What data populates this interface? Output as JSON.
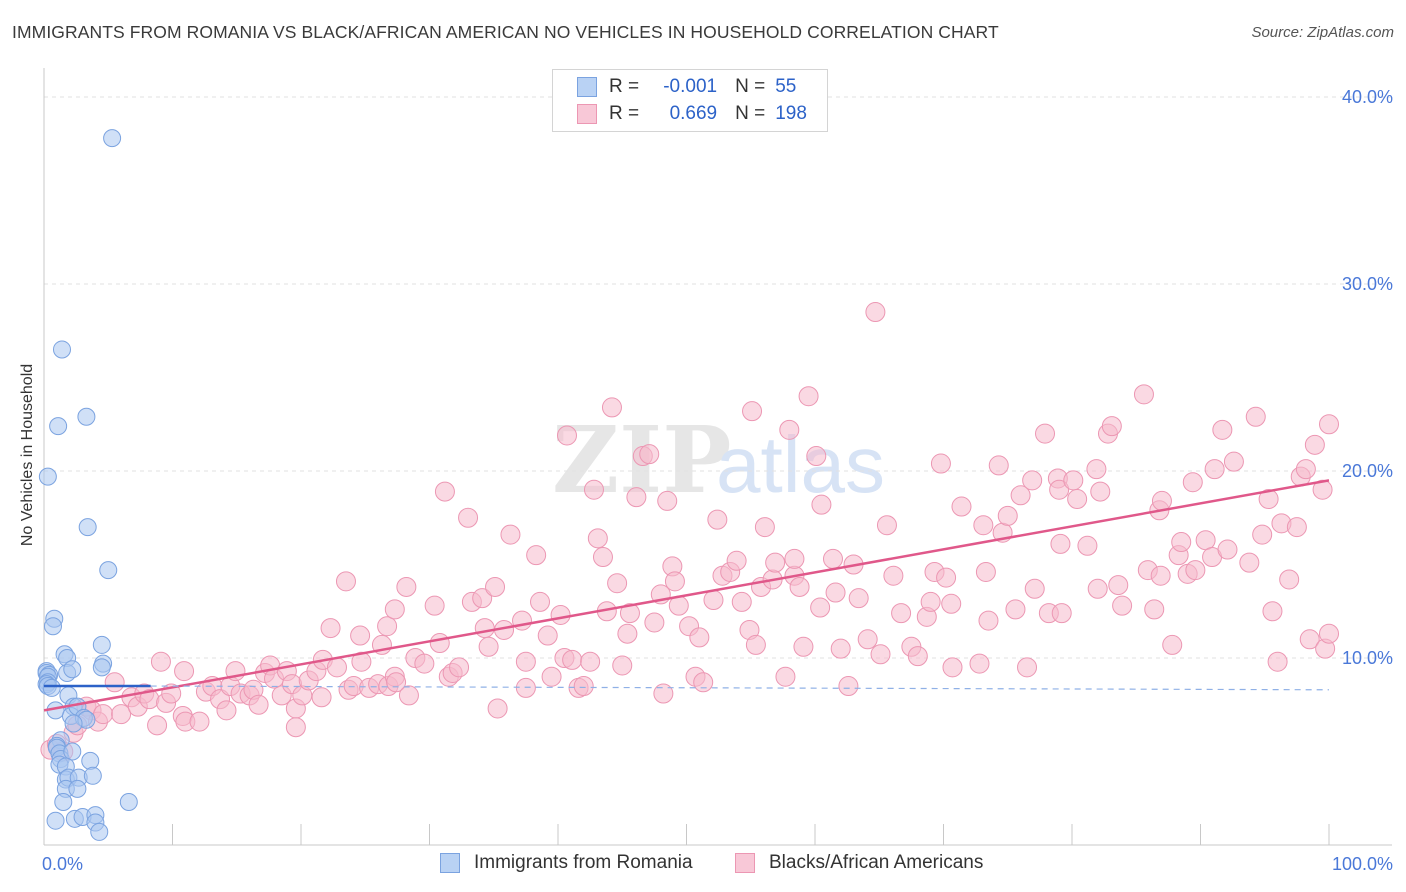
{
  "title": "IMMIGRANTS FROM ROMANIA VS BLACK/AFRICAN AMERICAN NO VEHICLES IN HOUSEHOLD CORRELATION CHART",
  "source": "Source: ZipAtlas.com",
  "watermark": {
    "zip": "ZIP",
    "atlas": "atlas"
  },
  "legend": {
    "rows": [
      {
        "r_label": "R =",
        "r_value": "-0.001",
        "n_label": "N =",
        "n_value": "55"
      },
      {
        "r_label": "R =",
        "r_value": "0.669",
        "n_label": "N =",
        "n_value": "198"
      }
    ]
  },
  "bottom_legend": [
    "Immigrants from Romania",
    "Blacks/African Americans"
  ],
  "chart_data": {
    "type": "scatter",
    "title": "IMMIGRANTS FROM ROMANIA VS BLACK/AFRICAN AMERICAN NO VEHICLES IN HOUSEHOLD CORRELATION CHART",
    "xlabel": "",
    "ylabel": "No Vehicles in Household",
    "xlim": [
      0,
      100
    ],
    "ylim": [
      0,
      40
    ],
    "x_tick_labels": [
      "0.0%",
      "100.0%"
    ],
    "y_ticks": [
      10,
      20,
      30,
      40
    ],
    "y_tick_labels": [
      "10.0%",
      "20.0%",
      "30.0%",
      "40.0%"
    ],
    "grid": true,
    "legend_position": "top-center",
    "colors": {
      "blue_fill": "#a9c6f0",
      "blue_stroke": "#7ba3e0",
      "blue_line": "#2c62c8",
      "pink_fill": "#f5b9cc",
      "pink_stroke": "#ec97b3",
      "pink_line": "#e0588a",
      "tick_text": "#4a78d8"
    },
    "series": [
      {
        "name": "Immigrants from Romania",
        "color": "#a9c6f0",
        "r": -0.001,
        "n": 55,
        "trend": {
          "x0": 0,
          "y0": 8.5,
          "x1": 8.3,
          "y1": 8.5,
          "dashed_to_x": 100,
          "dashed_y": 8.3
        },
        "points": [
          [
            5.3,
            37.8
          ],
          [
            1.4,
            26.5
          ],
          [
            1.1,
            22.4
          ],
          [
            3.3,
            22.9
          ],
          [
            0.3,
            19.7
          ],
          [
            3.4,
            17.0
          ],
          [
            5.0,
            14.7
          ],
          [
            0.8,
            12.1
          ],
          [
            0.7,
            11.7
          ],
          [
            1.6,
            10.2
          ],
          [
            1.8,
            10.0
          ],
          [
            4.5,
            10.7
          ],
          [
            4.6,
            9.7
          ],
          [
            4.5,
            9.5
          ],
          [
            0.2,
            9.3
          ],
          [
            0.2,
            9.2
          ],
          [
            0.4,
            9.1
          ],
          [
            0.3,
            9.0
          ],
          [
            1.8,
            9.2
          ],
          [
            2.2,
            9.4
          ],
          [
            0.3,
            8.7
          ],
          [
            0.2,
            8.6
          ],
          [
            0.3,
            8.5
          ],
          [
            0.6,
            8.4
          ],
          [
            1.9,
            8.0
          ],
          [
            0.9,
            7.2
          ],
          [
            2.3,
            7.4
          ],
          [
            2.1,
            6.9
          ],
          [
            2.6,
            7.4
          ],
          [
            3.1,
            6.8
          ],
          [
            3.3,
            6.7
          ],
          [
            2.3,
            6.5
          ],
          [
            1.3,
            5.6
          ],
          [
            1.0,
            5.3
          ],
          [
            1.0,
            5.2
          ],
          [
            1.2,
            4.9
          ],
          [
            1.3,
            4.6
          ],
          [
            2.2,
            5.0
          ],
          [
            1.2,
            4.3
          ],
          [
            1.7,
            4.2
          ],
          [
            3.6,
            4.5
          ],
          [
            1.7,
            3.5
          ],
          [
            1.9,
            3.6
          ],
          [
            2.7,
            3.6
          ],
          [
            3.8,
            3.7
          ],
          [
            1.7,
            3.0
          ],
          [
            2.6,
            3.0
          ],
          [
            1.5,
            2.3
          ],
          [
            6.6,
            2.3
          ],
          [
            2.4,
            1.4
          ],
          [
            3.0,
            1.5
          ],
          [
            4.0,
            1.6
          ],
          [
            4.0,
            1.2
          ],
          [
            4.3,
            0.7
          ],
          [
            0.9,
            1.3
          ]
        ]
      },
      {
        "name": "Blacks/African Americans",
        "color": "#f5b9cc",
        "r": 0.669,
        "n": 198,
        "trend": {
          "x0": 0,
          "y0": 7.2,
          "x1": 100,
          "y1": 19.5
        },
        "points": [
          [
            0.5,
            5.1
          ],
          [
            1.0,
            5.4
          ],
          [
            1.5,
            5.0
          ],
          [
            2.3,
            6.0
          ],
          [
            2.6,
            6.4
          ],
          [
            3.3,
            7.4
          ],
          [
            3.7,
            7.2
          ],
          [
            4.2,
            6.6
          ],
          [
            4.6,
            7.0
          ],
          [
            5.5,
            8.7
          ],
          [
            6.0,
            7.0
          ],
          [
            6.8,
            7.9
          ],
          [
            7.3,
            7.4
          ],
          [
            7.8,
            8.1
          ],
          [
            8.2,
            7.8
          ],
          [
            8.8,
            6.4
          ],
          [
            9.1,
            9.8
          ],
          [
            9.5,
            7.6
          ],
          [
            9.9,
            8.1
          ],
          [
            10.8,
            6.9
          ],
          [
            11.0,
            6.6
          ],
          [
            10.9,
            9.3
          ],
          [
            12.1,
            6.6
          ],
          [
            12.6,
            8.2
          ],
          [
            13.1,
            8.5
          ],
          [
            13.7,
            7.8
          ],
          [
            14.2,
            7.2
          ],
          [
            14.5,
            8.5
          ],
          [
            14.9,
            9.3
          ],
          [
            15.3,
            8.1
          ],
          [
            16.0,
            8.0
          ],
          [
            16.3,
            8.3
          ],
          [
            16.7,
            7.5
          ],
          [
            17.2,
            9.2
          ],
          [
            17.6,
            9.6
          ],
          [
            17.9,
            8.9
          ],
          [
            18.5,
            8.0
          ],
          [
            18.9,
            9.3
          ],
          [
            19.3,
            8.6
          ],
          [
            19.6,
            7.3
          ],
          [
            19.6,
            6.3
          ],
          [
            20.1,
            8.0
          ],
          [
            20.6,
            8.8
          ],
          [
            21.2,
            9.3
          ],
          [
            21.7,
            9.9
          ],
          [
            21.6,
            7.9
          ],
          [
            22.3,
            11.6
          ],
          [
            22.8,
            9.5
          ],
          [
            23.5,
            14.1
          ],
          [
            23.7,
            8.3
          ],
          [
            24.1,
            8.5
          ],
          [
            24.7,
            9.8
          ],
          [
            24.6,
            11.2
          ],
          [
            25.3,
            8.4
          ],
          [
            26.0,
            8.6
          ],
          [
            26.3,
            10.7
          ],
          [
            26.7,
            11.7
          ],
          [
            26.8,
            8.5
          ],
          [
            27.3,
            9.0
          ],
          [
            27.3,
            12.6
          ],
          [
            27.4,
            8.7
          ],
          [
            28.2,
            13.8
          ],
          [
            28.4,
            8.0
          ],
          [
            28.9,
            10.0
          ],
          [
            29.6,
            9.7
          ],
          [
            30.4,
            12.8
          ],
          [
            30.8,
            10.8
          ],
          [
            31.2,
            18.9
          ],
          [
            31.5,
            9.0
          ],
          [
            31.8,
            9.2
          ],
          [
            32.3,
            9.5
          ],
          [
            33.0,
            17.5
          ],
          [
            33.3,
            13.0
          ],
          [
            34.1,
            13.2
          ],
          [
            34.3,
            11.6
          ],
          [
            34.6,
            10.6
          ],
          [
            35.1,
            13.8
          ],
          [
            35.3,
            7.3
          ],
          [
            35.8,
            11.5
          ],
          [
            36.3,
            16.6
          ],
          [
            37.2,
            12.0
          ],
          [
            37.5,
            9.8
          ],
          [
            37.5,
            8.4
          ],
          [
            38.3,
            15.5
          ],
          [
            38.6,
            13.0
          ],
          [
            39.2,
            11.2
          ],
          [
            39.5,
            9.0
          ],
          [
            40.2,
            12.3
          ],
          [
            40.5,
            10.0
          ],
          [
            40.7,
            21.9
          ],
          [
            41.1,
            9.9
          ],
          [
            41.6,
            8.4
          ],
          [
            42.0,
            8.5
          ],
          [
            42.5,
            9.8
          ],
          [
            42.8,
            19.0
          ],
          [
            43.1,
            16.4
          ],
          [
            43.5,
            15.4
          ],
          [
            43.8,
            12.5
          ],
          [
            44.2,
            23.4
          ],
          [
            44.6,
            14.0
          ],
          [
            45.0,
            9.6
          ],
          [
            45.4,
            11.3
          ],
          [
            45.6,
            12.4
          ],
          [
            46.1,
            18.6
          ],
          [
            46.6,
            20.8
          ],
          [
            47.1,
            20.9
          ],
          [
            47.5,
            11.9
          ],
          [
            48.0,
            13.4
          ],
          [
            48.2,
            8.1
          ],
          [
            48.5,
            18.4
          ],
          [
            48.9,
            14.9
          ],
          [
            49.1,
            14.1
          ],
          [
            49.4,
            12.8
          ],
          [
            50.2,
            11.7
          ],
          [
            50.7,
            9.0
          ],
          [
            51.0,
            11.1
          ],
          [
            51.3,
            8.7
          ],
          [
            52.1,
            13.1
          ],
          [
            52.4,
            17.4
          ],
          [
            52.8,
            14.4
          ],
          [
            53.4,
            14.6
          ],
          [
            53.9,
            15.2
          ],
          [
            54.3,
            13.0
          ],
          [
            54.9,
            11.5
          ],
          [
            55.1,
            23.2
          ],
          [
            55.4,
            10.7
          ],
          [
            55.8,
            13.8
          ],
          [
            56.1,
            17.0
          ],
          [
            56.7,
            14.2
          ],
          [
            56.9,
            15.1
          ],
          [
            57.7,
            9.0
          ],
          [
            58.0,
            22.2
          ],
          [
            58.4,
            14.4
          ],
          [
            58.4,
            15.3
          ],
          [
            58.8,
            13.8
          ],
          [
            59.1,
            10.6
          ],
          [
            59.5,
            24.0
          ],
          [
            60.1,
            20.8
          ],
          [
            60.4,
            12.7
          ],
          [
            60.5,
            18.2
          ],
          [
            61.4,
            15.3
          ],
          [
            61.6,
            13.5
          ],
          [
            62.0,
            10.5
          ],
          [
            62.6,
            8.5
          ],
          [
            63.0,
            15.0
          ],
          [
            63.4,
            13.2
          ],
          [
            64.1,
            11.0
          ],
          [
            64.7,
            28.5
          ],
          [
            65.1,
            10.2
          ],
          [
            65.6,
            17.1
          ],
          [
            66.1,
            14.4
          ],
          [
            66.7,
            12.4
          ],
          [
            67.5,
            10.6
          ],
          [
            68.0,
            10.1
          ],
          [
            68.7,
            12.2
          ],
          [
            69.0,
            13.0
          ],
          [
            69.3,
            14.6
          ],
          [
            69.8,
            20.4
          ],
          [
            70.2,
            14.3
          ],
          [
            70.6,
            12.9
          ],
          [
            70.7,
            9.5
          ],
          [
            71.4,
            18.1
          ],
          [
            72.8,
            9.7
          ],
          [
            73.1,
            17.1
          ],
          [
            73.3,
            14.6
          ],
          [
            73.5,
            12.0
          ],
          [
            74.3,
            20.3
          ],
          [
            74.6,
            16.7
          ],
          [
            75.0,
            17.6
          ],
          [
            75.6,
            12.6
          ],
          [
            76.0,
            18.7
          ],
          [
            76.5,
            9.5
          ],
          [
            76.9,
            19.5
          ],
          [
            77.1,
            13.7
          ],
          [
            77.9,
            22.0
          ],
          [
            78.2,
            12.4
          ],
          [
            78.9,
            19.6
          ],
          [
            79.0,
            19.0
          ],
          [
            79.1,
            16.1
          ],
          [
            79.2,
            12.4
          ],
          [
            80.1,
            19.5
          ],
          [
            80.4,
            18.5
          ],
          [
            81.2,
            16.0
          ],
          [
            81.9,
            20.1
          ],
          [
            82.0,
            13.7
          ],
          [
            82.2,
            18.9
          ],
          [
            82.8,
            22.0
          ],
          [
            83.1,
            22.4
          ],
          [
            83.6,
            13.9
          ],
          [
            83.9,
            12.8
          ],
          [
            85.6,
            24.1
          ],
          [
            85.9,
            14.7
          ],
          [
            86.4,
            12.6
          ],
          [
            86.8,
            17.9
          ],
          [
            86.9,
            14.4
          ],
          [
            87.0,
            18.4
          ],
          [
            87.8,
            10.7
          ],
          [
            88.3,
            15.5
          ],
          [
            88.5,
            16.2
          ],
          [
            89.0,
            14.5
          ],
          [
            89.4,
            19.4
          ],
          [
            89.6,
            14.7
          ],
          [
            90.4,
            16.3
          ],
          [
            90.9,
            15.4
          ],
          [
            91.1,
            20.1
          ],
          [
            91.7,
            22.2
          ],
          [
            92.1,
            15.8
          ],
          [
            92.6,
            20.5
          ],
          [
            93.8,
            15.1
          ],
          [
            94.3,
            22.9
          ],
          [
            94.8,
            16.6
          ],
          [
            95.3,
            18.5
          ],
          [
            95.6,
            12.5
          ],
          [
            96.0,
            9.8
          ],
          [
            96.3,
            17.2
          ],
          [
            96.9,
            14.2
          ],
          [
            97.5,
            17.0
          ],
          [
            97.8,
            19.7
          ],
          [
            98.2,
            20.1
          ],
          [
            98.5,
            11.0
          ],
          [
            98.9,
            21.4
          ],
          [
            99.5,
            19.0
          ],
          [
            99.7,
            10.5
          ],
          [
            100.0,
            11.3
          ],
          [
            100.0,
            22.5
          ]
        ]
      }
    ]
  }
}
